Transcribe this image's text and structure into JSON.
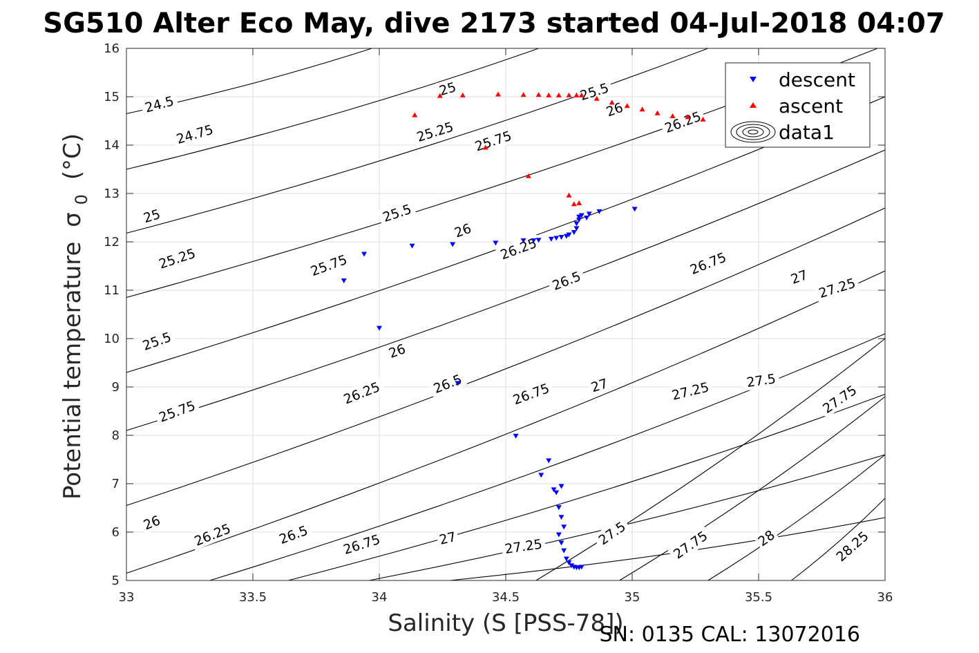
{
  "chart_data": {
    "type": "scatter",
    "title": "SG510 Alter Eco May, dive 2173 started 04-Jul-2018 04:07",
    "xlabel": "Salinity (S [PSS-78])",
    "ylabel_main": "Potential temperature",
    "ylabel_symbol": "σ",
    "ylabel_subscript": "0",
    "ylabel_unit": "(°C)",
    "xlim": [
      33,
      36
    ],
    "ylim": [
      5,
      16
    ],
    "grid": true,
    "legend_position": "top-right",
    "x_ticks": [
      {
        "value": 33,
        "label": "33"
      },
      {
        "value": 33.5,
        "label": "33.5"
      },
      {
        "value": 34,
        "label": "34"
      },
      {
        "value": 34.5,
        "label": "34.5"
      },
      {
        "value": 35,
        "label": "35"
      },
      {
        "value": 35.5,
        "label": "35.5"
      },
      {
        "value": 36,
        "label": "36"
      }
    ],
    "y_ticks": [
      {
        "value": 5,
        "label": "5"
      },
      {
        "value": 6,
        "label": "6"
      },
      {
        "value": 7,
        "label": "7"
      },
      {
        "value": 8,
        "label": "8"
      },
      {
        "value": 9,
        "label": "9"
      },
      {
        "value": 10,
        "label": "10"
      },
      {
        "value": 11,
        "label": "11"
      },
      {
        "value": 12,
        "label": "12"
      },
      {
        "value": 13,
        "label": "13"
      },
      {
        "value": 14,
        "label": "14"
      },
      {
        "value": 15,
        "label": "15"
      },
      {
        "value": 16,
        "label": "16"
      }
    ],
    "contours": [
      {
        "start": [
          33.0,
          14.65
        ],
        "end": [
          33.97,
          16.0
        ],
        "labels": [
          {
            "text": "24.5",
            "s": 33.13,
            "t": 14.85
          }
        ]
      },
      {
        "start": [
          33.0,
          13.5
        ],
        "end": [
          34.63,
          16.0
        ],
        "labels": [
          {
            "text": "24.75",
            "s": 33.27,
            "t": 14.23
          },
          {
            "text": "25",
            "s": 34.27,
            "t": 15.17
          }
        ]
      },
      {
        "start": [
          33.0,
          12.18
        ],
        "end": [
          35.3,
          16.0
        ],
        "labels": [
          {
            "text": "25",
            "s": 33.1,
            "t": 12.54
          },
          {
            "text": "25.25",
            "s": 34.22,
            "t": 14.28
          },
          {
            "text": "25.5",
            "s": 34.85,
            "t": 15.11
          }
        ]
      },
      {
        "start": [
          33.0,
          10.85
        ],
        "end": [
          35.97,
          16.0
        ],
        "labels": [
          {
            "text": "25.25",
            "s": 33.2,
            "t": 11.66
          },
          {
            "text": "25.5",
            "s": 34.07,
            "t": 12.6
          },
          {
            "text": "25.75",
            "s": 34.45,
            "t": 14.09
          }
        ]
      },
      {
        "start": [
          33.0,
          9.3
        ],
        "end": [
          36.0,
          15.0
        ],
        "labels": [
          {
            "text": "25.5",
            "s": 33.12,
            "t": 9.95
          },
          {
            "text": "25.75",
            "s": 33.8,
            "t": 11.52
          },
          {
            "text": "26",
            "s": 34.33,
            "t": 12.24
          },
          {
            "text": "26",
            "s": 34.93,
            "t": 14.74
          }
        ]
      },
      {
        "start": [
          33.0,
          8.1
        ],
        "end": [
          36.0,
          13.9
        ],
        "labels": [
          {
            "text": "25.75",
            "s": 33.2,
            "t": 8.5
          },
          {
            "text": "26",
            "s": 34.07,
            "t": 9.75
          },
          {
            "text": "26.25",
            "s": 34.55,
            "t": 11.86
          },
          {
            "text": "26.25",
            "s": 35.2,
            "t": 14.48
          }
        ]
      },
      {
        "start": [
          33.0,
          6.55
        ],
        "end": [
          36.0,
          12.7
        ],
        "labels": [
          {
            "text": "26",
            "s": 33.1,
            "t": 6.2
          },
          {
            "text": "26.25",
            "s": 33.93,
            "t": 8.88
          },
          {
            "text": "26.5",
            "s": 34.74,
            "t": 11.2
          }
        ]
      },
      {
        "start": [
          33.0,
          5.15
        ],
        "end": [
          36.0,
          11.4
        ],
        "labels": [
          {
            "text": "26.25",
            "s": 33.34,
            "t": 5.95
          },
          {
            "text": "26.5",
            "s": 34.27,
            "t": 9.07
          },
          {
            "text": "26.75",
            "s": 35.3,
            "t": 11.56
          }
        ]
      },
      {
        "start": [
          33.33,
          5.0
        ],
        "end": [
          36.0,
          10.1
        ],
        "labels": [
          {
            "text": "26.5",
            "s": 33.66,
            "t": 5.95
          },
          {
            "text": "26.75",
            "s": 34.6,
            "t": 8.86
          },
          {
            "text": "27",
            "s": 35.66,
            "t": 11.28
          }
        ]
      },
      {
        "start": [
          33.64,
          5.0
        ],
        "end": [
          36.0,
          8.85
        ],
        "labels": [
          {
            "text": "26.75",
            "s": 33.93,
            "t": 5.75
          },
          {
            "text": "27",
            "s": 34.87,
            "t": 9.04
          },
          {
            "text": "27.25",
            "s": 35.81,
            "t": 11.05
          }
        ]
      },
      {
        "start": [
          33.96,
          5.0
        ],
        "end": [
          36.0,
          7.6
        ],
        "labels": [
          {
            "text": "27",
            "s": 34.27,
            "t": 5.88
          },
          {
            "text": "27.25",
            "s": 35.23,
            "t": 8.92
          }
        ]
      },
      {
        "start": [
          34.28,
          5.0
        ],
        "end": [
          36.0,
          6.3
        ],
        "labels": [
          {
            "text": "27.25",
            "s": 34.57,
            "t": 5.71
          },
          {
            "text": "27.5",
            "s": 35.51,
            "t": 9.14
          }
        ]
      },
      {
        "start": [
          34.62,
          5.0
        ],
        "end": [
          36.0,
          10.0
        ],
        "labels": [
          {
            "text": "27.5",
            "s": 34.92,
            "t": 5.98
          },
          {
            "text": "27.75",
            "s": 35.82,
            "t": 8.75
          }
        ]
      },
      {
        "start": [
          34.95,
          5.0
        ],
        "end": [
          36.0,
          8.8
        ],
        "labels": [
          {
            "text": "27.75",
            "s": 35.23,
            "t": 5.74
          }
        ]
      },
      {
        "start": [
          35.3,
          5.0
        ],
        "end": [
          36.0,
          7.6
        ],
        "labels": [
          {
            "text": "28",
            "s": 35.53,
            "t": 5.88
          }
        ]
      },
      {
        "start": [
          35.63,
          5.0
        ],
        "end": [
          36.0,
          6.7
        ],
        "labels": [
          {
            "text": "28.25",
            "s": 35.87,
            "t": 5.71
          }
        ]
      }
    ],
    "series": [
      {
        "name": "descent",
        "color": "#0000ff",
        "marker": "triangle-down",
        "x": [
          33.86,
          33.94,
          34.0,
          34.13,
          34.29,
          34.31,
          34.46,
          34.54,
          34.57,
          34.61,
          34.63,
          34.68,
          34.7,
          34.72,
          34.74,
          34.75,
          34.77,
          34.78,
          34.78,
          34.79,
          34.79,
          34.8,
          34.82,
          34.83,
          34.87,
          35.01,
          34.67,
          34.64,
          34.69,
          34.72,
          34.7,
          34.71,
          34.72,
          34.73,
          34.71,
          34.72,
          34.73,
          34.74,
          34.75,
          34.76,
          34.77,
          34.78,
          34.79,
          34.8
        ],
        "y": [
          11.2,
          11.75,
          10.22,
          11.92,
          11.95,
          9.08,
          11.98,
          7.99,
          12.03,
          12.03,
          12.04,
          12.06,
          12.08,
          12.1,
          12.12,
          12.15,
          12.2,
          12.28,
          12.38,
          12.46,
          12.52,
          12.55,
          12.5,
          12.58,
          12.63,
          12.68,
          7.48,
          7.18,
          6.88,
          6.95,
          6.82,
          6.51,
          6.31,
          6.11,
          5.95,
          5.78,
          5.62,
          5.45,
          5.37,
          5.31,
          5.28,
          5.27,
          5.27,
          5.28
        ]
      },
      {
        "name": "ascent",
        "color": "#ff0000",
        "marker": "triangle-up",
        "x": [
          34.14,
          34.24,
          34.33,
          34.42,
          34.47,
          34.57,
          34.63,
          34.67,
          34.71,
          34.75,
          34.78,
          34.8,
          34.86,
          34.92,
          34.98,
          35.04,
          35.1,
          35.16,
          35.22,
          35.28,
          34.59,
          34.75,
          34.77,
          34.79
        ],
        "y": [
          14.62,
          15.02,
          15.03,
          13.95,
          15.05,
          15.04,
          15.04,
          15.03,
          15.03,
          15.03,
          15.03,
          15.03,
          14.96,
          14.88,
          14.81,
          14.74,
          14.66,
          14.6,
          14.58,
          14.53,
          13.36,
          12.96,
          12.78,
          12.8
        ]
      }
    ],
    "legend_entries": [
      "descent",
      "ascent",
      "data1"
    ],
    "footer": "SN: 0135  CAL: 13072016"
  }
}
